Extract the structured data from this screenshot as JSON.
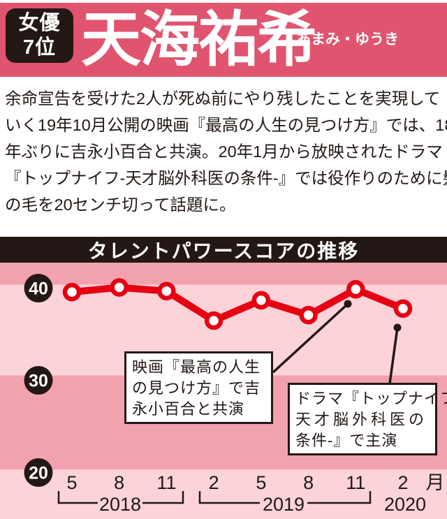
{
  "header": {
    "category": "女優",
    "rank": "7位",
    "name": "天海祐希",
    "reading": "あまみ・ゆうき"
  },
  "bio": {
    "lines": [
      "余命宣告を受けた2人が死ぬ前にやり残したことを実現して",
      "いく19年10月公開の映画『最高の人生の見つけ方』では、18",
      "年ぶりに吉永小百合と共演。20年1月から放映されたドラマ",
      "『トップナイフ-天才脳外科医の条件-』では役作りのために髪",
      "の毛を20センチ切って話題に。"
    ]
  },
  "chart_data": {
    "type": "line",
    "title": "タレントパワースコアの推移",
    "x_periods": [
      "2018-05",
      "2018-08",
      "2018-11",
      "2019-02",
      "2019-05",
      "2019-08",
      "2019-11",
      "2020-02"
    ],
    "x_labels": [
      "5",
      "8",
      "11",
      "2",
      "5",
      "8",
      "11",
      "2"
    ],
    "x_unit": "月",
    "year_groups": [
      {
        "label": "2018",
        "months": [
          "5",
          "8",
          "11"
        ]
      },
      {
        "label": "2019",
        "months": [
          "2",
          "5",
          "8",
          "11"
        ]
      },
      {
        "label": "2020",
        "months": [
          "2"
        ]
      }
    ],
    "series": [
      {
        "name": "タレントパワースコア",
        "values": [
          39.2,
          39.7,
          39.3,
          36.1,
          38.3,
          36.7,
          39.5,
          37.4
        ]
      }
    ],
    "yticks": [
      40,
      30,
      20
    ],
    "ylim": [
      17,
      42.5
    ],
    "grid": "off",
    "legend": "none",
    "background": "alternating pink bands per 10 score units",
    "annotations": [
      {
        "lines": [
          "映画『最高の人生",
          "の見つけ方』で吉",
          "永小百合と共演"
        ],
        "target": "2019-11"
      },
      {
        "lines": [
          "ドラマ『トップナイフ-",
          "天才脳外科医の",
          "条件-』で主演"
        ],
        "target": "2020-02"
      }
    ]
  },
  "colors": {
    "banner_pink": "#e0546f",
    "ink": "#231815",
    "band_light": "#fbd3d8",
    "band_medium": "#f2a2ae",
    "line_red": "#e60012",
    "white": "#ffffff"
  }
}
